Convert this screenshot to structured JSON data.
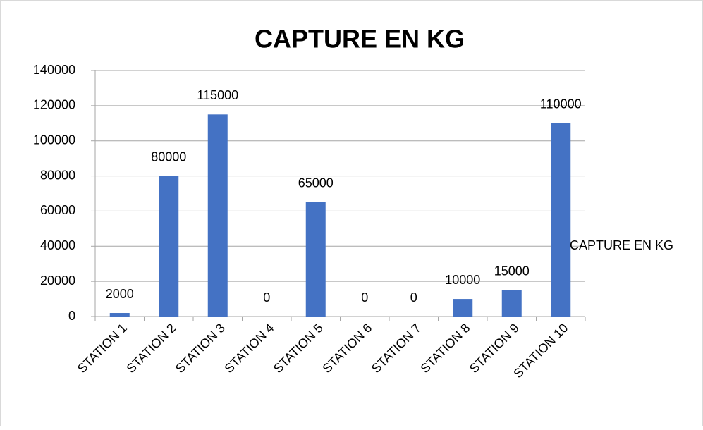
{
  "chart_data": {
    "type": "bar",
    "title": "CAPTURE EN KG",
    "categories": [
      "STATION 1",
      "STATION 2",
      "STATION 3",
      "STATION 4",
      "STATION 5",
      "STATION 6",
      "STATION 7",
      "STATION 8",
      "STATION 9",
      "STATION 10"
    ],
    "series": [
      {
        "name": "CAPTURE EN KG",
        "color": "#4472c4",
        "values": [
          2000,
          80000,
          115000,
          0,
          65000,
          0,
          0,
          10000,
          15000,
          110000
        ]
      }
    ],
    "ylim": [
      0,
      140000
    ],
    "yticks": [
      0,
      20000,
      40000,
      60000,
      80000,
      100000,
      120000,
      140000
    ],
    "grid": true,
    "legend": "right",
    "data_labels": true
  }
}
